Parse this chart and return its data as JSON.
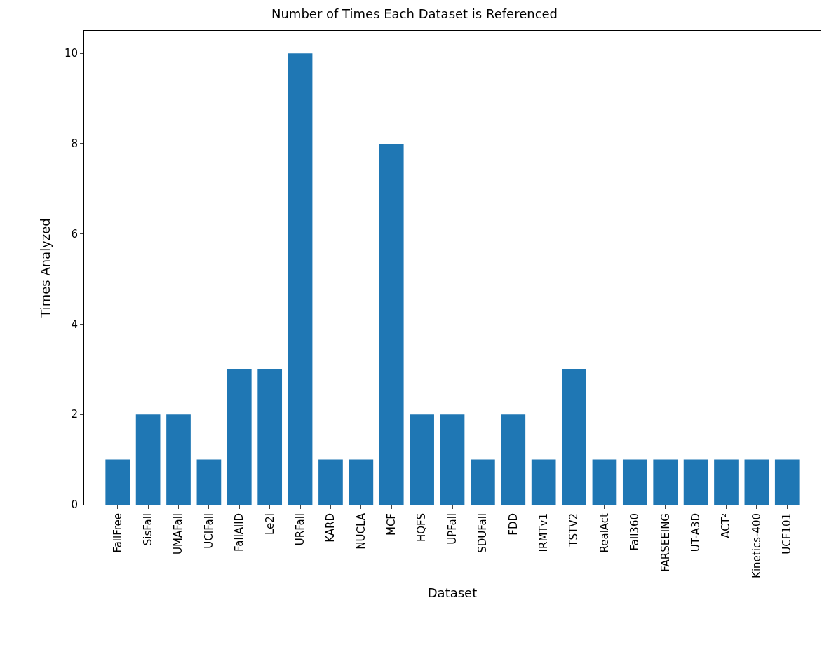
{
  "chart_data": {
    "type": "bar",
    "title": "Number of Times Each Dataset is Referenced",
    "xlabel": "Dataset",
    "ylabel": "Times Analyzed",
    "categories": [
      "FallFree",
      "SisFall",
      "UMAFall",
      "UCIFall",
      "FallAllD",
      "Le2i",
      "URFall",
      "KARD",
      "NUCLA",
      "MCF",
      "HQFS",
      "UPFall",
      "SDUFall",
      "FDD",
      "IRMTv1",
      "TSTV2",
      "RealAct",
      "Fall360",
      "FARSEEING",
      "UT-A3D",
      "ACT²",
      "Kinetics-400",
      "UCF101"
    ],
    "values": [
      1,
      2,
      2,
      1,
      3,
      3,
      10,
      1,
      1,
      8,
      2,
      2,
      1,
      2,
      1,
      3,
      1,
      1,
      1,
      1,
      1,
      1,
      1
    ],
    "color": "#1f77b4",
    "ylim": [
      0,
      10.5
    ],
    "yticks": [
      0,
      2,
      4,
      6,
      8,
      10
    ],
    "legend": false
  }
}
